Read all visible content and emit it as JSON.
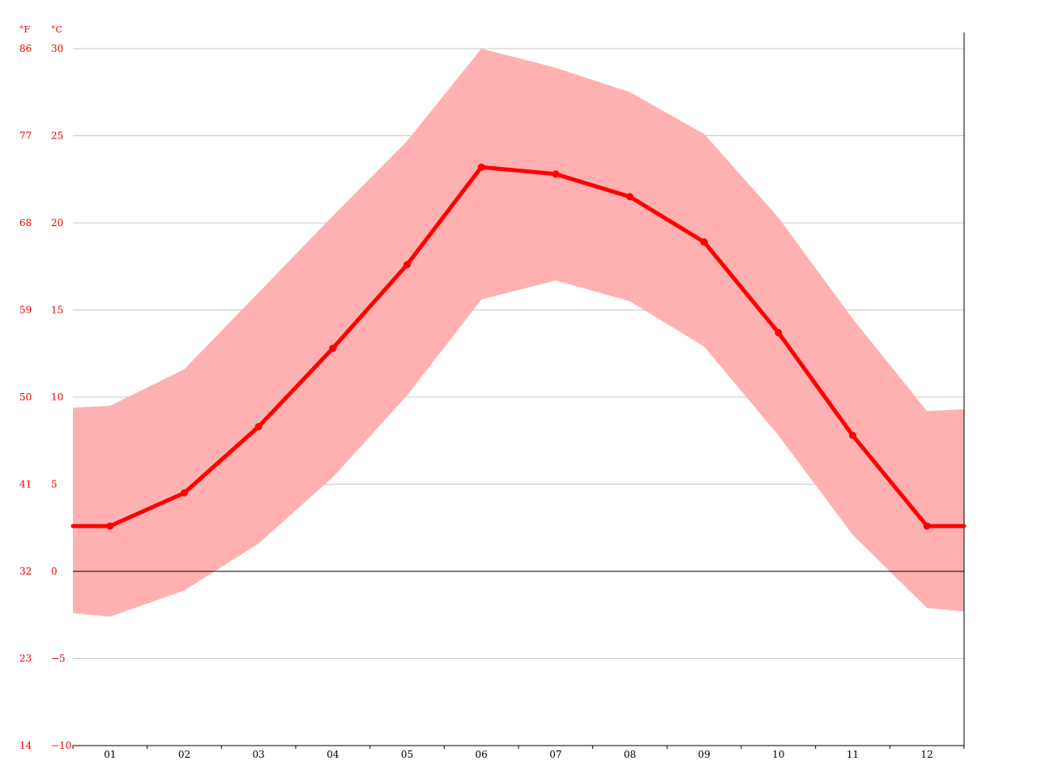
{
  "chart_data": {
    "type": "line",
    "categories": [
      "01",
      "02",
      "03",
      "04",
      "05",
      "06",
      "07",
      "08",
      "09",
      "10",
      "11",
      "12"
    ],
    "series": [
      {
        "values": [
          2.6,
          4.5,
          8.3,
          12.8,
          17.6,
          23.2,
          22.8,
          21.5,
          18.9,
          13.7,
          7.8,
          2.6
        ]
      }
    ],
    "band": {
      "high": [
        9.5,
        11.6,
        16.0,
        20.4,
        24.7,
        30.0,
        28.9,
        27.5,
        25.1,
        20.3,
        14.5,
        9.2
      ],
      "low": [
        -2.6,
        -1.1,
        1.6,
        5.4,
        10.1,
        15.6,
        16.7,
        15.5,
        12.9,
        7.8,
        2.1,
        -2.1
      ]
    },
    "y_celsius": {
      "unit": "°C",
      "ticks": [
        "30",
        "25",
        "20",
        "15",
        "10",
        "5",
        "0",
        "−5",
        "−10"
      ],
      "range": [
        -10,
        30
      ]
    },
    "y_fahrenheit": {
      "unit": "°F",
      "ticks": [
        "86",
        "77",
        "68",
        "59",
        "50",
        "41",
        "32",
        "23",
        "14"
      ]
    },
    "grid": true,
    "colors": {
      "line": "#ff0000",
      "band": "#ffb1b2",
      "axis_text": "#ee0000",
      "grid": "#c8c8c8",
      "zero_line": "#000000"
    }
  }
}
